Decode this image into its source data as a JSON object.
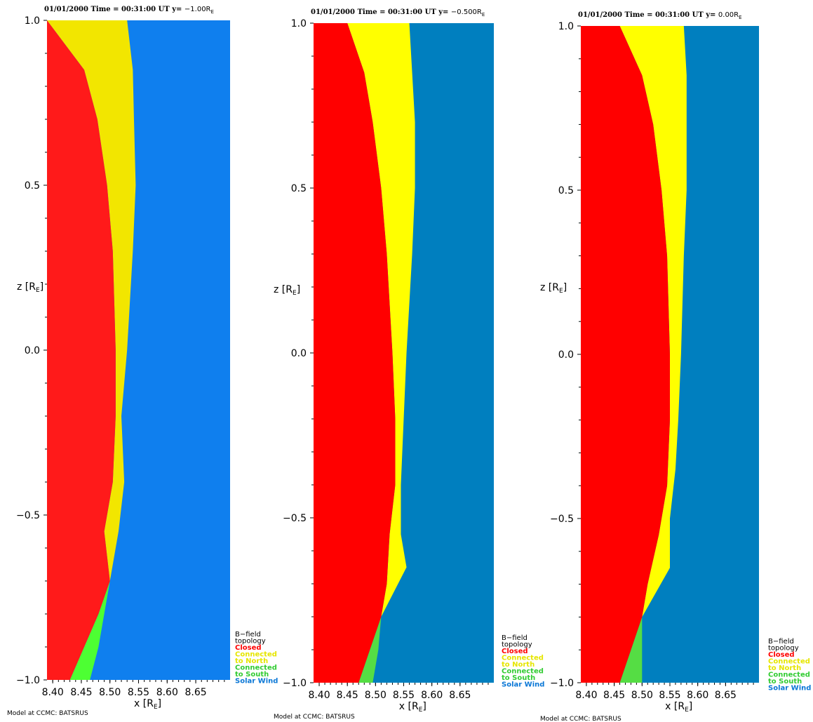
{
  "chart_data": [
    {
      "type": "heatmap",
      "title": {
        "prefix": "01/01/2000 Time = 00:31:00 UT y= ",
        "value": "−1.00R",
        "sub": "E"
      },
      "xlabel": {
        "main": "x [R",
        "sub": "E",
        "close": "]"
      },
      "ylabel": {
        "main": "z [R",
        "sub": "E",
        "close": "]"
      },
      "xlim": [
        8.39,
        8.71
      ],
      "ylim": [
        -1.0,
        1.0
      ],
      "x_ticks": [
        "8.40",
        "8.45",
        "8.50",
        "8.55",
        "8.60",
        "8.65"
      ],
      "y_ticks": [
        "−1.0",
        "−0.5",
        "0.0",
        "0.5",
        "1.0"
      ],
      "legend_title": [
        "B−field",
        "topology"
      ],
      "legend": [
        "Closed",
        "Connected",
        "to North",
        "Connected",
        "to South",
        "Solar Wind"
      ],
      "credit": "Model at CCMC: BATSRUS",
      "colors": {
        "closed": "#ff1a1a",
        "north": "#f2e600",
        "south": "#4dff33",
        "solar_wind": "#0f7fee"
      },
      "regions": {
        "closed_boundary": [
          [
            -1.0,
            8.43
          ],
          [
            -0.9,
            8.455
          ],
          [
            -0.8,
            8.48
          ],
          [
            -0.7,
            8.5
          ],
          [
            -0.55,
            8.49
          ],
          [
            -0.4,
            8.505
          ],
          [
            -0.2,
            8.51
          ],
          [
            0.0,
            8.51
          ],
          [
            0.3,
            8.505
          ],
          [
            0.5,
            8.495
          ],
          [
            0.7,
            8.478
          ],
          [
            0.85,
            8.455
          ],
          [
            1.0,
            8.39
          ]
        ],
        "north_outer": [
          [
            -0.7,
            8.5
          ],
          [
            -0.55,
            8.515
          ],
          [
            -0.4,
            8.525
          ],
          [
            -0.2,
            8.52
          ],
          [
            0.0,
            8.53
          ],
          [
            0.3,
            8.54
          ],
          [
            0.5,
            8.545
          ],
          [
            0.7,
            8.542
          ],
          [
            0.85,
            8.54
          ],
          [
            1.0,
            8.53
          ]
        ],
        "south_outer": [
          [
            -1.0,
            8.465
          ],
          [
            -0.9,
            8.48
          ],
          [
            -0.8,
            8.49
          ],
          [
            -0.7,
            8.5
          ]
        ]
      }
    },
    {
      "type": "heatmap",
      "title": {
        "prefix": "01/01/2000 Time = 00:31:00 UT y= ",
        "value": "−0.500R",
        "sub": "E"
      },
      "xlabel": {
        "main": "x [R",
        "sub": "E",
        "close": "]"
      },
      "ylabel": {
        "main": "z [R",
        "sub": "E",
        "close": "]"
      },
      "xlim": [
        8.39,
        8.71
      ],
      "ylim": [
        -1.0,
        1.0
      ],
      "x_ticks": [
        "8.40",
        "8.45",
        "8.50",
        "8.55",
        "8.60",
        "8.65"
      ],
      "y_ticks": [
        "−1.0",
        "−0.5",
        "0.0",
        "0.5",
        "1.0"
      ],
      "legend_title": [
        "B−field",
        "topology"
      ],
      "legend": [
        "Closed",
        "Connected",
        "to North",
        "Connected",
        "to South",
        "Solar Wind"
      ],
      "credit": "Model at CCMC: BATSRUS",
      "colors": {
        "closed": "#ff0000",
        "north": "#ffff00",
        "south": "#55dd44",
        "solar_wind": "#007fbf"
      },
      "regions": {
        "closed_boundary": [
          [
            -1.0,
            8.47
          ],
          [
            -0.9,
            8.49
          ],
          [
            -0.8,
            8.51
          ],
          [
            -0.7,
            8.52
          ],
          [
            -0.55,
            8.525
          ],
          [
            -0.4,
            8.535
          ],
          [
            -0.2,
            8.535
          ],
          [
            0.0,
            8.53
          ],
          [
            0.3,
            8.52
          ],
          [
            0.5,
            8.51
          ],
          [
            0.7,
            8.495
          ],
          [
            0.85,
            8.48
          ],
          [
            1.0,
            8.45
          ]
        ],
        "north_outer": [
          [
            -0.8,
            8.51
          ],
          [
            -0.65,
            8.555
          ],
          [
            -0.55,
            8.545
          ],
          [
            -0.4,
            8.545
          ],
          [
            -0.2,
            8.55
          ],
          [
            0.0,
            8.555
          ],
          [
            0.3,
            8.565
          ],
          [
            0.5,
            8.57
          ],
          [
            0.7,
            8.57
          ],
          [
            0.85,
            8.565
          ],
          [
            1.0,
            8.56
          ]
        ],
        "south_outer": [
          [
            -1.0,
            8.495
          ],
          [
            -0.9,
            8.505
          ],
          [
            -0.8,
            8.51
          ]
        ]
      }
    },
    {
      "type": "heatmap",
      "title": {
        "prefix": "01/01/2000 Time = 00:31:00 UT y= ",
        "value": "0.00R",
        "sub": "E"
      },
      "xlabel": {
        "main": "x [R",
        "sub": "E",
        "close": "]"
      },
      "ylabel": {
        "main": "z [R",
        "sub": "E",
        "close": "]"
      },
      "xlim": [
        8.39,
        8.71
      ],
      "ylim": [
        -1.0,
        1.0
      ],
      "x_ticks": [
        "8.40",
        "8.45",
        "8.50",
        "8.55",
        "8.60",
        "8.65"
      ],
      "y_ticks": [
        "−1.0",
        "−0.5",
        "0.0",
        "0.5",
        "1.0"
      ],
      "legend_title": [
        "B−field",
        "topology"
      ],
      "legend": [
        "Closed",
        "Connected",
        "to North",
        "Connected",
        "to South",
        "Solar Wind"
      ],
      "credit": "Model at CCMC: BATSRUS",
      "colors": {
        "closed": "#ff0000",
        "north": "#ffff00",
        "south": "#55dd44",
        "solar_wind": "#007fbf"
      },
      "regions": {
        "closed_boundary": [
          [
            -1.0,
            8.46
          ],
          [
            -0.9,
            8.48
          ],
          [
            -0.8,
            8.5
          ],
          [
            -0.7,
            8.51
          ],
          [
            -0.55,
            8.53
          ],
          [
            -0.4,
            8.545
          ],
          [
            -0.2,
            8.55
          ],
          [
            0.0,
            8.55
          ],
          [
            0.3,
            8.545
          ],
          [
            0.5,
            8.535
          ],
          [
            0.7,
            8.52
          ],
          [
            0.85,
            8.5
          ],
          [
            1.0,
            8.46
          ]
        ],
        "north_outer": [
          [
            -0.8,
            8.5
          ],
          [
            -0.65,
            8.55
          ],
          [
            -0.5,
            8.55
          ],
          [
            -0.35,
            8.56
          ],
          [
            -0.2,
            8.565
          ],
          [
            0.0,
            8.57
          ],
          [
            0.3,
            8.575
          ],
          [
            0.5,
            8.58
          ],
          [
            0.7,
            8.58
          ],
          [
            0.85,
            8.58
          ],
          [
            1.0,
            8.575
          ]
        ],
        "south_outer": [
          [
            -1.0,
            8.5
          ],
          [
            -0.9,
            8.5
          ],
          [
            -0.8,
            8.5
          ]
        ]
      }
    }
  ]
}
